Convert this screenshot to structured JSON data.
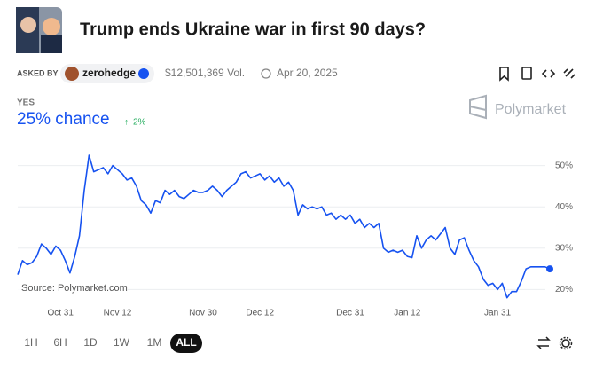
{
  "header": {
    "title": "Trump ends Ukraine war in first 90 days?",
    "asked_by": "ASKED BY",
    "user": "zerohedge",
    "volume": "$12,501,369 Vol.",
    "date": "Apr 20, 2025"
  },
  "price": {
    "outcome": "YES",
    "chance": "25% chance",
    "change": "2%"
  },
  "brand": "Polymarket",
  "source": "Source: Polymarket.com",
  "ranges": [
    "1H",
    "6H",
    "1D",
    "1W",
    "1M",
    "ALL"
  ],
  "chart_data": {
    "type": "line",
    "color": "#1652f0",
    "grid": true,
    "ylim": [
      16,
      54
    ],
    "yticks": [
      {
        "value": 20,
        "label": "20%"
      },
      {
        "value": 30,
        "label": "30%"
      },
      {
        "value": 40,
        "label": "40%"
      },
      {
        "value": 50,
        "label": "50%"
      }
    ],
    "categories": [
      null,
      null,
      null,
      null,
      null,
      null,
      null,
      null,
      null,
      "Oct 31",
      null,
      null,
      null,
      null,
      null,
      null,
      null,
      null,
      null,
      null,
      null,
      "Nov 12",
      null,
      null,
      null,
      null,
      null,
      null,
      null,
      null,
      null,
      null,
      null,
      null,
      null,
      null,
      null,
      null,
      null,
      "Nov 30",
      null,
      null,
      null,
      null,
      null,
      null,
      null,
      null,
      null,
      null,
      null,
      "Dec 12",
      null,
      null,
      null,
      null,
      null,
      null,
      null,
      null,
      null,
      null,
      null,
      null,
      null,
      null,
      null,
      null,
      null,
      null,
      "Dec 31",
      null,
      null,
      null,
      null,
      null,
      null,
      null,
      null,
      null,
      null,
      null,
      "Jan 12",
      null,
      null,
      null,
      null,
      null,
      null,
      null,
      null,
      null,
      null,
      null,
      null,
      null,
      null,
      null,
      null,
      null,
      null,
      "Jan 31",
      null,
      null,
      null,
      null,
      null,
      null,
      null,
      null,
      null,
      null,
      null
    ],
    "values": [
      23.6,
      27,
      26,
      26.5,
      28,
      31,
      30,
      28.5,
      30.5,
      29.5,
      27,
      24,
      28,
      33,
      44,
      52.5,
      48.5,
      49,
      49.5,
      48,
      50,
      49,
      48,
      46.5,
      47,
      45,
      41.5,
      40.5,
      38.5,
      41.5,
      41,
      44,
      43,
      44,
      42.5,
      42,
      43,
      44,
      43.5,
      43.5,
      44,
      45,
      44,
      42.5,
      44,
      45,
      46,
      48,
      48.5,
      47,
      47.5,
      48,
      46.5,
      47.5,
      46,
      47,
      45,
      46,
      44,
      38,
      40.5,
      39.5,
      40,
      39.5,
      40,
      38,
      38.5,
      37,
      38,
      37,
      38,
      36,
      37,
      35,
      36,
      35,
      36,
      30,
      29,
      29.5,
      29,
      29.5,
      28,
      27.7,
      33,
      30,
      32,
      33,
      32,
      33.5,
      35,
      30,
      28.5,
      32,
      32.5,
      29.5,
      27,
      25.5,
      22.5,
      21,
      21.5,
      20,
      21.5,
      18,
      19.5,
      19.5,
      22,
      25,
      25.5,
      25.5,
      25.5,
      25.5,
      25
    ]
  }
}
